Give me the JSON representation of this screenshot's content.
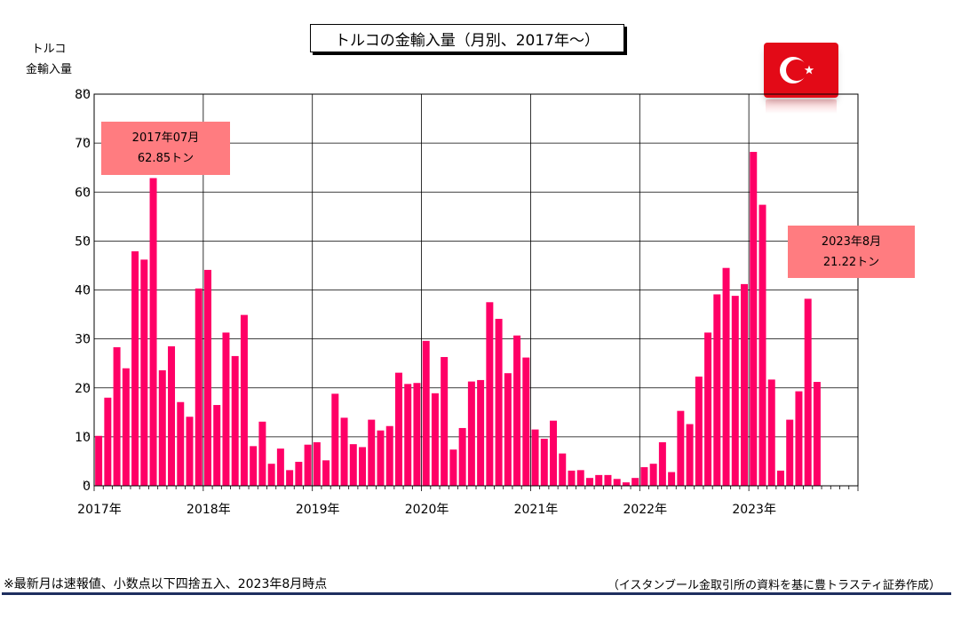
{
  "colors": {
    "bar": "#ff0066",
    "callout": "#ff7c80",
    "flag": "#e30a17",
    "rule": "#1f2f5f"
  },
  "icons": {
    "flag": "turkey-flag-icon"
  },
  "chart_data": {
    "type": "bar",
    "title": "トルコの金輸入量（月別、2017年～）",
    "ylabel": "トルコ\n金輸入量",
    "y_unit": "ﾄﾝ",
    "ylim": [
      0,
      80
    ],
    "yticks": [
      0,
      10,
      20,
      30,
      40,
      50,
      60,
      70,
      80
    ],
    "grid": true,
    "x_start": "2017-01",
    "xtick_labels": [
      "2017年",
      "2018年",
      "2019年",
      "2020年",
      "2021年",
      "2022年",
      "2023年"
    ],
    "values": [
      10.2,
      18.0,
      28.3,
      24.0,
      47.9,
      46.2,
      62.85,
      23.6,
      28.5,
      17.1,
      14.1,
      40.3,
      44.1,
      16.5,
      31.3,
      26.5,
      34.9,
      8.1,
      13.1,
      4.5,
      7.6,
      3.2,
      4.9,
      8.4,
      8.9,
      5.2,
      18.8,
      13.9,
      8.5,
      7.9,
      13.5,
      11.3,
      12.2,
      23.1,
      20.8,
      21.0,
      29.6,
      18.9,
      26.3,
      7.4,
      11.8,
      21.3,
      21.6,
      37.5,
      34.1,
      23.0,
      30.7,
      26.2,
      11.5,
      9.6,
      13.3,
      6.6,
      3.1,
      3.2,
      1.6,
      2.2,
      2.2,
      1.4,
      0.7,
      1.6,
      3.8,
      4.5,
      8.9,
      2.8,
      15.3,
      12.6,
      22.3,
      31.3,
      39.1,
      44.5,
      38.8,
      41.2,
      68.2,
      57.4,
      21.7,
      3.1,
      13.5,
      19.3,
      38.2,
      21.22
    ],
    "annotations": [
      {
        "line1": "2017年07月",
        "line2": "62.85トン"
      },
      {
        "line1": "2023年8月",
        "line2": "21.22トン"
      }
    ]
  },
  "footnote_left": "※最新月は速報値、小数点以下四捨五入、2023年8月時点",
  "footnote_right": "（イスタンブール金取引所の資料を基に豊トラスティ証券作成）"
}
